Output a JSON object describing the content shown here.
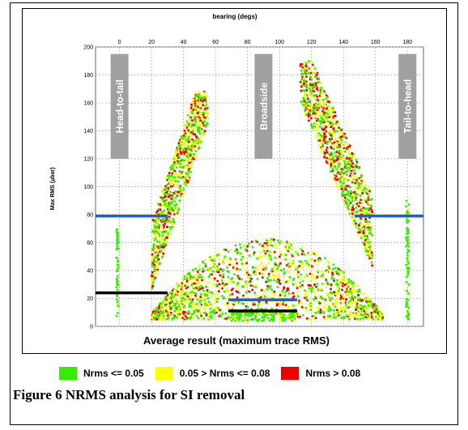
{
  "chart_data": {
    "type": "scatter",
    "title": "bearing (degs)",
    "xlabel": "Average result (maximum trace RMS)",
    "ylabel": "Max RMS (µbar)",
    "xlim": [
      -15,
      190
    ],
    "ylim": [
      0,
      200
    ],
    "x_ticks": [
      0,
      20,
      40,
      60,
      80,
      100,
      120,
      140,
      160,
      180
    ],
    "y_ticks": [
      0,
      20,
      40,
      60,
      80,
      100,
      120,
      140,
      160,
      180,
      200
    ],
    "grid": true,
    "regions": [
      {
        "label": "Head-to-tail",
        "x": 0
      },
      {
        "label": "Broadside",
        "x": 90
      },
      {
        "label": "Tail-to-head",
        "x": 180
      }
    ],
    "reference_lines": [
      {
        "color": "#1f5fd6",
        "x": [
          -15,
          30
        ],
        "y": 79
      },
      {
        "color": "#1f5fd6",
        "x": [
          147,
          190
        ],
        "y": 79
      },
      {
        "color": "#1f5fd6",
        "x": [
          68,
          111
        ],
        "y": 19
      },
      {
        "color": "#000000",
        "x": [
          -15,
          30
        ],
        "y": 24
      },
      {
        "color": "#000000",
        "x": [
          68,
          111
        ],
        "y": 11
      }
    ],
    "series": [
      {
        "name": "Nrms <= 0.05",
        "color": "#33ee00"
      },
      {
        "name": "0.05 > Nrms <= 0.08",
        "color": "#ffff00"
      },
      {
        "name": "Nrms > 0.08",
        "color": "#ee0000"
      }
    ]
  },
  "legend": [
    {
      "label": "Nrms <= 0.05",
      "color": "#33ee00"
    },
    {
      "label": "0.05 > Nrms <= 0.08",
      "color": "#ffff00"
    },
    {
      "label": "Nrms > 0.08",
      "color": "#ee0000"
    }
  ],
  "caption": "Figure 6 NRMS analysis for SI removal"
}
